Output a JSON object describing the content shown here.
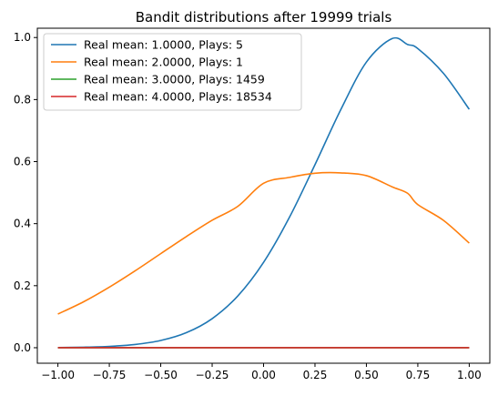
{
  "chart_data": {
    "type": "line",
    "title": "Bandit distributions after 19999 trials",
    "xlabel": "",
    "ylabel": "",
    "xlim": [
      -1.1,
      1.1
    ],
    "ylim": [
      -0.05,
      1.03
    ],
    "x_ticks": [
      -1.0,
      -0.75,
      -0.5,
      -0.25,
      0.0,
      0.25,
      0.5,
      0.75,
      1.0
    ],
    "x_tick_labels": [
      "−1.00",
      "−0.75",
      "−0.50",
      "−0.25",
      "0.00",
      "0.25",
      "0.50",
      "0.75",
      "1.00"
    ],
    "y_ticks": [
      0.0,
      0.2,
      0.4,
      0.6,
      0.8,
      1.0
    ],
    "y_tick_labels": [
      "0.0",
      "0.2",
      "0.4",
      "0.6",
      "0.8",
      "1.0"
    ],
    "grid": false,
    "legend_position": "top-left",
    "x": [
      -1.0,
      -0.875,
      -0.75,
      -0.625,
      -0.5,
      -0.375,
      -0.25,
      -0.125,
      0.0,
      0.125,
      0.25,
      0.375,
      0.5,
      0.625,
      0.7,
      0.75,
      0.875,
      1.0
    ],
    "series": [
      {
        "name": "Real mean: 1.0000, Plays: 5",
        "color": "#1f77b4",
        "values": [
          0.0006,
          0.0017,
          0.0043,
          0.0104,
          0.0233,
          0.0486,
          0.0937,
          0.1671,
          0.2753,
          0.4194,
          0.5901,
          0.767,
          0.9209,
          0.9966,
          0.9777,
          0.9645,
          0.8843,
          0.7686
        ]
      },
      {
        "name": "Real mean: 2.0000, Plays: 1",
        "color": "#ff7f0e",
        "values": [
          0.1085,
          0.1481,
          0.1952,
          0.2477,
          0.3033,
          0.3586,
          0.4109,
          0.456,
          0.5301,
          0.549,
          0.5625,
          0.5637,
          0.5548,
          0.5187,
          0.4981,
          0.4613,
          0.4104,
          0.3372
        ]
      },
      {
        "name": "Real mean: 3.0000, Plays: 1459",
        "color": "#2ca02c",
        "values": [
          0,
          0,
          0,
          0,
          0,
          0,
          0,
          0,
          0,
          0,
          0,
          0,
          0,
          0,
          0,
          0,
          0,
          0
        ]
      },
      {
        "name": "Real mean: 4.0000, Plays: 18534",
        "color": "#d62728",
        "values": [
          0,
          0,
          0,
          0,
          0,
          0,
          0,
          0,
          0,
          0,
          0,
          0,
          0,
          0,
          0,
          0,
          0,
          0
        ]
      }
    ]
  }
}
